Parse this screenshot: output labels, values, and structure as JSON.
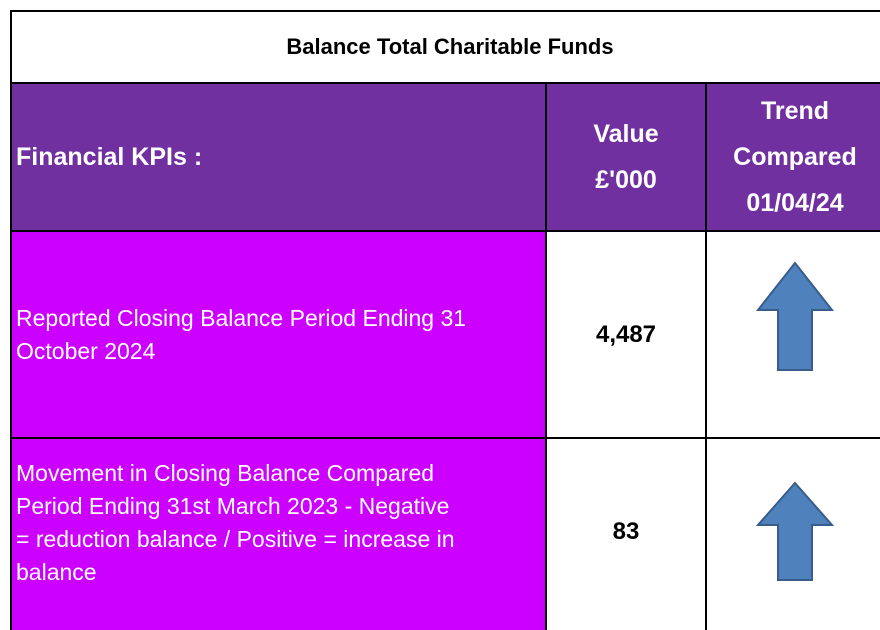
{
  "header": {
    "title": "Balance Total Charitable Funds"
  },
  "table": {
    "columns": [
      [
        "Financial KPIs :"
      ],
      [
        "Value",
        "£'000"
      ],
      [
        "Trend",
        "Compared",
        "01/04/24"
      ]
    ],
    "rows": [
      [
        [
          "Reported Closing Balance Period Ending 31",
          "October 2024"
        ],
        "4,487"
      ],
      [
        [
          "Movement in Closing Balance Compared",
          "Period Ending 31st March 2023 - Negative",
          "= reduction balance / Positive = increase in",
          "balance"
        ],
        "83"
      ]
    ]
  }
}
